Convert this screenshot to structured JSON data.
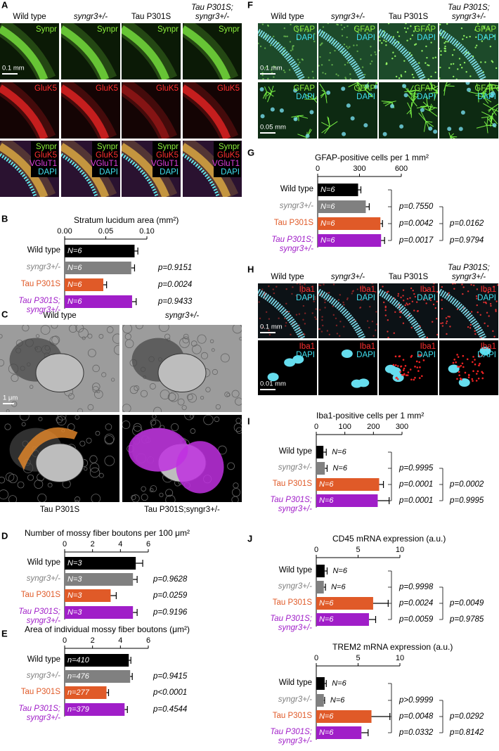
{
  "panel_labels": [
    "A",
    "B",
    "C",
    "D",
    "E",
    "F",
    "G",
    "H",
    "I",
    "J"
  ],
  "micrographs": {
    "A": {
      "columns": [
        "Wild type",
        "syngr3+/-",
        "Tau P301S",
        "Tau P301S; syngr3+/-"
      ],
      "rows": [
        [
          {
            "label": "Synpr",
            "color": "#8cf03c"
          }
        ],
        [
          {
            "label": "GluK5",
            "color": "#ff3030"
          }
        ],
        [
          {
            "label": "Synpr",
            "color": "#8cf03c"
          },
          {
            "label": "GluK5",
            "color": "#ff3030"
          },
          {
            "label": "VGluT1",
            "color": "#e040e0"
          },
          {
            "label": "DAPI",
            "color": "#40e0f0"
          }
        ]
      ],
      "scale_bars": [
        "0.1 mm"
      ]
    },
    "C": {
      "columns": [
        "Wild type",
        "syngr3+/-"
      ],
      "footers": [
        "Tau P301S",
        "Tau P301S;syngr3+/-"
      ],
      "scale_bars": [
        "1 μm"
      ]
    },
    "F": {
      "columns": [
        "Wild type",
        "syngr3+/-",
        "Tau P301S",
        "Tau P301S; syngr3+/-"
      ],
      "rows": [
        [
          {
            "label": "GFAP",
            "color": "#8cf03c"
          },
          {
            "label": "DAPI",
            "color": "#40e0f0"
          }
        ],
        [
          {
            "label": "GFAP",
            "color": "#8cf03c"
          },
          {
            "label": "DAPI",
            "color": "#40e0f0"
          }
        ]
      ],
      "scale_bars": [
        "0.1 mm",
        "0.05 mm"
      ]
    },
    "H": {
      "columns": [
        "Wild type",
        "syngr3+/-",
        "Tau P301S",
        "Tau P301S; syngr3+/-"
      ],
      "rows": [
        [
          {
            "label": "Iba1",
            "color": "#ff3030"
          },
          {
            "label": "DAPI",
            "color": "#40e0f0"
          }
        ],
        [
          {
            "label": "Iba1",
            "color": "#ff3030"
          },
          {
            "label": "DAPI",
            "color": "#40e0f0"
          }
        ]
      ],
      "scale_bars": [
        "0.1 mm",
        "0.01 mm"
      ]
    }
  },
  "chart_data": [
    {
      "type": "bar",
      "orientation": "horizontal",
      "title": "Stratum lucidum area (mm²)",
      "categories": [
        "Wild type",
        "syngr3+/-",
        "Tau P301S",
        "Tau P301S; syngr3+/-"
      ],
      "values": [
        0.085,
        0.081,
        0.047,
        0.082
      ],
      "errors": [
        0.004,
        0.004,
        0.004,
        0.005
      ],
      "colors": [
        "#000000",
        "#808080",
        "#e05a28",
        "#a01ec8"
      ],
      "n_labels": [
        "N=6",
        "N=6",
        "N=6",
        "N=6"
      ],
      "xlim": [
        0,
        0.1
      ],
      "xticks": [
        {
          "value": 0,
          "label": "0.00"
        },
        {
          "value": 0.05,
          "label": "0.05"
        },
        {
          "value": 0.1,
          "label": "0.10"
        }
      ],
      "p_values": [
        [
          "p=0.9151",
          "p=0.0024",
          "p=0.9433"
        ]
      ]
    },
    {
      "type": "bar",
      "orientation": "horizontal",
      "title": "Number of mossy fiber boutons per 100 μm²",
      "categories": [
        "Wild type",
        "syngr3+/-",
        "Tau P301S",
        "Tau P301S; syngr3+/-"
      ],
      "values": [
        5.1,
        4.9,
        3.3,
        4.9
      ],
      "errors": [
        0.5,
        0.3,
        0.4,
        0.3
      ],
      "colors": [
        "#000000",
        "#808080",
        "#e05a28",
        "#a01ec8"
      ],
      "n_labels": [
        "N=3",
        "N=3",
        "N=3",
        "N=3"
      ],
      "xlim": [
        0,
        6
      ],
      "xticks": [
        0,
        2,
        4,
        6
      ],
      "p_values": [
        [
          "p=0.9628",
          "p=0.0259",
          "p=0.9196"
        ]
      ]
    },
    {
      "type": "bar",
      "orientation": "horizontal",
      "title": "Area of individual mossy fiber boutons (μm²)",
      "categories": [
        "Wild type",
        "syngr3+/-",
        "Tau P301S",
        "Tau P301S; syngr3+/-"
      ],
      "values": [
        4.6,
        4.7,
        3.0,
        4.3
      ],
      "errors": [
        0.15,
        0.15,
        0.15,
        0.2
      ],
      "colors": [
        "#000000",
        "#808080",
        "#e05a28",
        "#a01ec8"
      ],
      "n_labels": [
        "n=410",
        "n=476",
        "n=277",
        "n=379"
      ],
      "xlim": [
        0,
        6
      ],
      "xticks": [
        0,
        2,
        4,
        6
      ],
      "p_values": [
        [
          "p=0.9415",
          "p<0.0001",
          "p=0.4544"
        ]
      ]
    },
    {
      "type": "bar",
      "orientation": "horizontal",
      "title": "GFAP-positive cells per 1 mm²",
      "categories": [
        "Wild type",
        "syngr3+/-",
        "Tau P301S",
        "Tau P301S; syngr3+/-"
      ],
      "values": [
        290,
        345,
        450,
        455
      ],
      "errors": [
        20,
        25,
        15,
        25
      ],
      "colors": [
        "#000000",
        "#808080",
        "#e05a28",
        "#a01ec8"
      ],
      "n_labels": [
        "N=6",
        "N=6",
        "N=6",
        "N=6"
      ],
      "xlim": [
        0,
        600
      ],
      "xticks": [
        0,
        300,
        600
      ],
      "p_values": [
        [
          "p=0.7550",
          "p=0.0042",
          "p=0.0017"
        ],
        [
          "p=0.0162",
          "p=0.9794"
        ]
      ]
    },
    {
      "type": "bar",
      "orientation": "horizontal",
      "title": "Iba1-positive cells per 1 mm²",
      "categories": [
        "Wild type",
        "syngr3+/-",
        "Tau P301S",
        "Tau P301S; syngr3+/-"
      ],
      "values": [
        25,
        30,
        220,
        215
      ],
      "errors": [
        10,
        8,
        15,
        40
      ],
      "colors": [
        "#000000",
        "#808080",
        "#e05a28",
        "#a01ec8"
      ],
      "n_labels": [
        "N=6",
        "N=6",
        "N=6",
        "N=6"
      ],
      "xlim": [
        0,
        300
      ],
      "xticks": [
        0,
        100,
        200,
        300
      ],
      "p_values": [
        [
          "p=0.9995",
          "p=0.0001",
          "p=0.0001"
        ],
        [
          "p=0.0002",
          "p=0.9995"
        ]
      ]
    },
    {
      "type": "bar",
      "orientation": "horizontal",
      "title": "CD45 mRNA expression  (a.u.)",
      "categories": [
        "Wild type",
        "syngr3+/-",
        "Tau P301S",
        "Tau P301S; syngr3+/-"
      ],
      "values": [
        1.0,
        0.9,
        6.8,
        6.3
      ],
      "errors": [
        0.3,
        0.2,
        1.8,
        0.8
      ],
      "colors": [
        "#000000",
        "#808080",
        "#e05a28",
        "#a01ec8"
      ],
      "n_labels": [
        "N=6",
        "N=6",
        "N=6",
        "N=6"
      ],
      "xlim": [
        0,
        10
      ],
      "xticks": [
        0,
        5,
        10
      ],
      "p_values": [
        [
          "p=0.9998",
          "p=0.0024",
          "p=0.0059"
        ],
        [
          "p=0.0049",
          "p=0.9785"
        ]
      ]
    },
    {
      "type": "bar",
      "orientation": "horizontal",
      "title": "TREM2 mRNA expression  (a.u.)",
      "categories": [
        "Wild type",
        "syngr3+/-",
        "Tau P301S",
        "Tau P301S; syngr3+/-"
      ],
      "values": [
        1.0,
        0.9,
        6.6,
        5.4
      ],
      "errors": [
        0.2,
        0.1,
        2.2,
        0.8
      ],
      "colors": [
        "#000000",
        "#808080",
        "#e05a28",
        "#a01ec8"
      ],
      "n_labels": [
        "N=6",
        "N=6",
        "N=6",
        "N=6"
      ],
      "xlim": [
        0,
        10
      ],
      "xticks": [
        0,
        5,
        10
      ],
      "p_values": [
        [
          "p>0.9999",
          "p=0.0048",
          "p=0.0332"
        ],
        [
          "p=0.0292",
          "p=0.8142"
        ]
      ]
    }
  ]
}
